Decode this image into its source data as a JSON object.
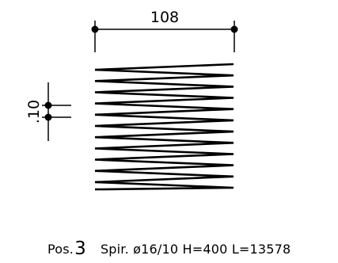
{
  "drawing": {
    "width_dimension": "108",
    "pitch_dimension": ".10",
    "spiral_turns": 11
  },
  "caption": {
    "pos_label": "Pos.",
    "pos_number": "3",
    "spec": "Spir. ø16/10 H=400 L=13578"
  }
}
